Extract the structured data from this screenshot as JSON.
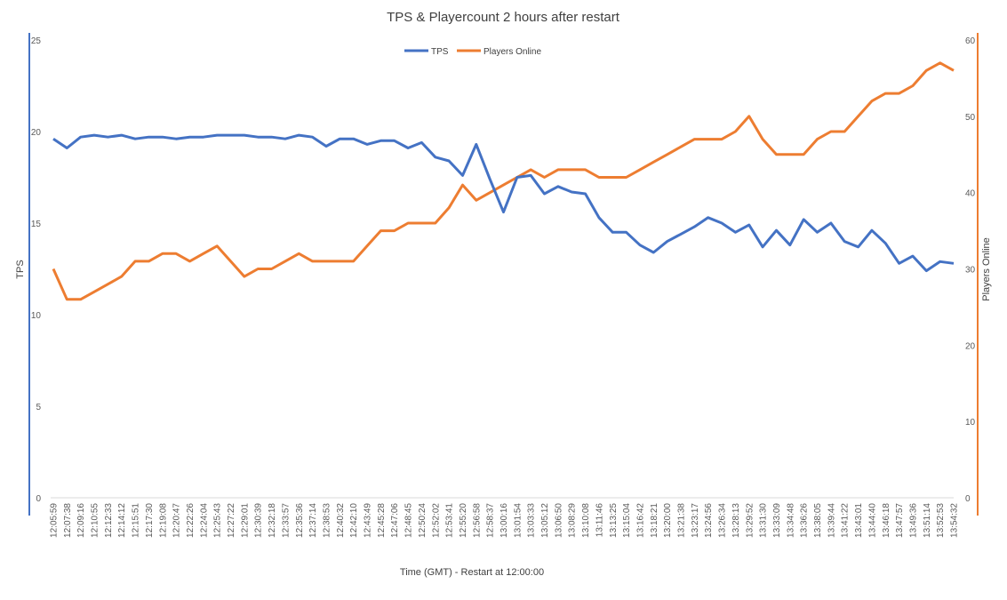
{
  "chart_data": {
    "type": "line",
    "title": "TPS & Playercount 2 hours after restart",
    "xlabel": "Time (GMT) - Restart at 12:00:00",
    "ylabel_left": "TPS",
    "ylabel_right": "Players Online",
    "ylim_left": [
      0,
      25
    ],
    "ylim_right": [
      0,
      60
    ],
    "yticks_left": [
      "0",
      "5",
      "10",
      "15",
      "20",
      "25"
    ],
    "yticks_right": [
      "0",
      "10",
      "20",
      "30",
      "40",
      "50",
      "60"
    ],
    "legend_position": "top-center",
    "grid": false,
    "colors": {
      "tps": "#4472C4",
      "players": "#ED7D31",
      "left_axis": "#4472C4",
      "right_axis": "#ED7D31"
    },
    "x": [
      "12:05:59",
      "12:07:38",
      "12:09:16",
      "12:10:55",
      "12:12:33",
      "12:14:12",
      "12:15:51",
      "12:17:30",
      "12:19:08",
      "12:20:47",
      "12:22:26",
      "12:24:04",
      "12:25:43",
      "12:27:22",
      "12:29:01",
      "12:30:39",
      "12:32:18",
      "12:33:57",
      "12:35:36",
      "12:37:14",
      "12:38:53",
      "12:40:32",
      "12:42:10",
      "12:43:49",
      "12:45:28",
      "12:47:06",
      "12:48:45",
      "12:50:24",
      "12:52:02",
      "12:53:41",
      "12:55:20",
      "12:56:58",
      "12:58:37",
      "13:00:16",
      "13:01:54",
      "13:03:33",
      "13:05:12",
      "13:06:50",
      "13:08:29",
      "13:10:08",
      "13:11:46",
      "13:13:25",
      "13:15:04",
      "13:16:42",
      "13:18:21",
      "13:20:00",
      "13:21:38",
      "13:23:17",
      "13:24:56",
      "13:26:34",
      "13:28:13",
      "13:29:52",
      "13:31:30",
      "13:33:09",
      "13:34:48",
      "13:36:26",
      "13:38:05",
      "13:39:44",
      "13:41:22",
      "13:43:01",
      "13:44:40",
      "13:46:18",
      "13:47:57",
      "13:49:36",
      "13:51:14",
      "13:52:53",
      "13:54:32"
    ],
    "x_tick_labels": [
      "12:05:59",
      "12:07:38",
      "12:09:16",
      "12:10:55",
      "12:12:33",
      "12:14:12",
      "12:15:51",
      "12:17:30",
      "12:19:08",
      "12:20:47",
      "12:22:26",
      "12:24:04",
      "12:25:43",
      "12:27:22",
      "12:29:01",
      "12:30:39",
      "12:32:18",
      "12:33:57",
      "12:35:36",
      "12:37:14",
      "12:38:53",
      "12:40:32",
      "12:42:10",
      "12:43:49",
      "12:45:28",
      "12:47:06",
      "12:48:45",
      "12:50:24",
      "12:52:02",
      "12:53:41",
      "12:55:20",
      "12:56:58",
      "12:58:37",
      "13:00:16",
      "13:01:54",
      "13:03:33",
      "13:05:12",
      "13:06:50",
      "13:08:29",
      "13:10:08",
      "13:11:46",
      "13:13:25",
      "13:15:04",
      "13:16:42",
      "13:18:21",
      "13:20:00",
      "13:21:38",
      "13:23:17",
      "13:24:56",
      "13:26:34",
      "13:28:13",
      "13:29:52",
      "13:31:30",
      "13:33:09",
      "13:34:48",
      "13:36:26",
      "13:38:05",
      "13:39:44",
      "13:41:22",
      "13:43:01",
      "13:44:40",
      "13:46:18",
      "13:47:57",
      "13:49:36",
      "13:51:14",
      "13:52:53",
      "13:54:32"
    ],
    "series": [
      {
        "name": "TPS",
        "axis": "left",
        "values": [
          19.6,
          19.1,
          19.7,
          19.8,
          19.7,
          19.8,
          19.6,
          19.7,
          19.7,
          19.6,
          19.7,
          19.7,
          19.8,
          19.8,
          19.8,
          19.7,
          19.7,
          19.6,
          19.8,
          19.7,
          19.2,
          19.6,
          19.6,
          19.3,
          19.5,
          19.5,
          19.1,
          19.4,
          18.6,
          18.4,
          17.6,
          19.3,
          17.4,
          15.6,
          17.5,
          17.6,
          16.6,
          17.0,
          16.7,
          16.6,
          15.3,
          14.5,
          14.5,
          13.8,
          13.4,
          14.0,
          14.4,
          14.8,
          15.3,
          15.0,
          14.5,
          14.9,
          13.7,
          14.6,
          13.8,
          15.2,
          14.5,
          15.0,
          14.0,
          13.7,
          14.6,
          13.9,
          12.8,
          13.2,
          12.4,
          12.9,
          12.8
        ]
      },
      {
        "name": "Players Online",
        "axis": "right",
        "values": [
          30,
          26,
          26,
          27,
          28,
          29,
          31,
          31,
          32,
          32,
          31,
          32,
          33,
          31,
          29,
          30,
          30,
          31,
          32,
          31,
          31,
          31,
          31,
          33,
          35,
          35,
          36,
          36,
          36,
          38,
          41,
          39,
          40,
          41,
          42,
          43,
          42,
          43,
          43,
          43,
          42,
          42,
          42,
          43,
          44,
          45,
          46,
          47,
          47,
          47,
          48,
          50,
          47,
          45,
          45,
          45,
          47,
          48,
          48,
          50,
          52,
          53,
          53,
          54,
          56,
          57,
          56
        ]
      }
    ]
  }
}
